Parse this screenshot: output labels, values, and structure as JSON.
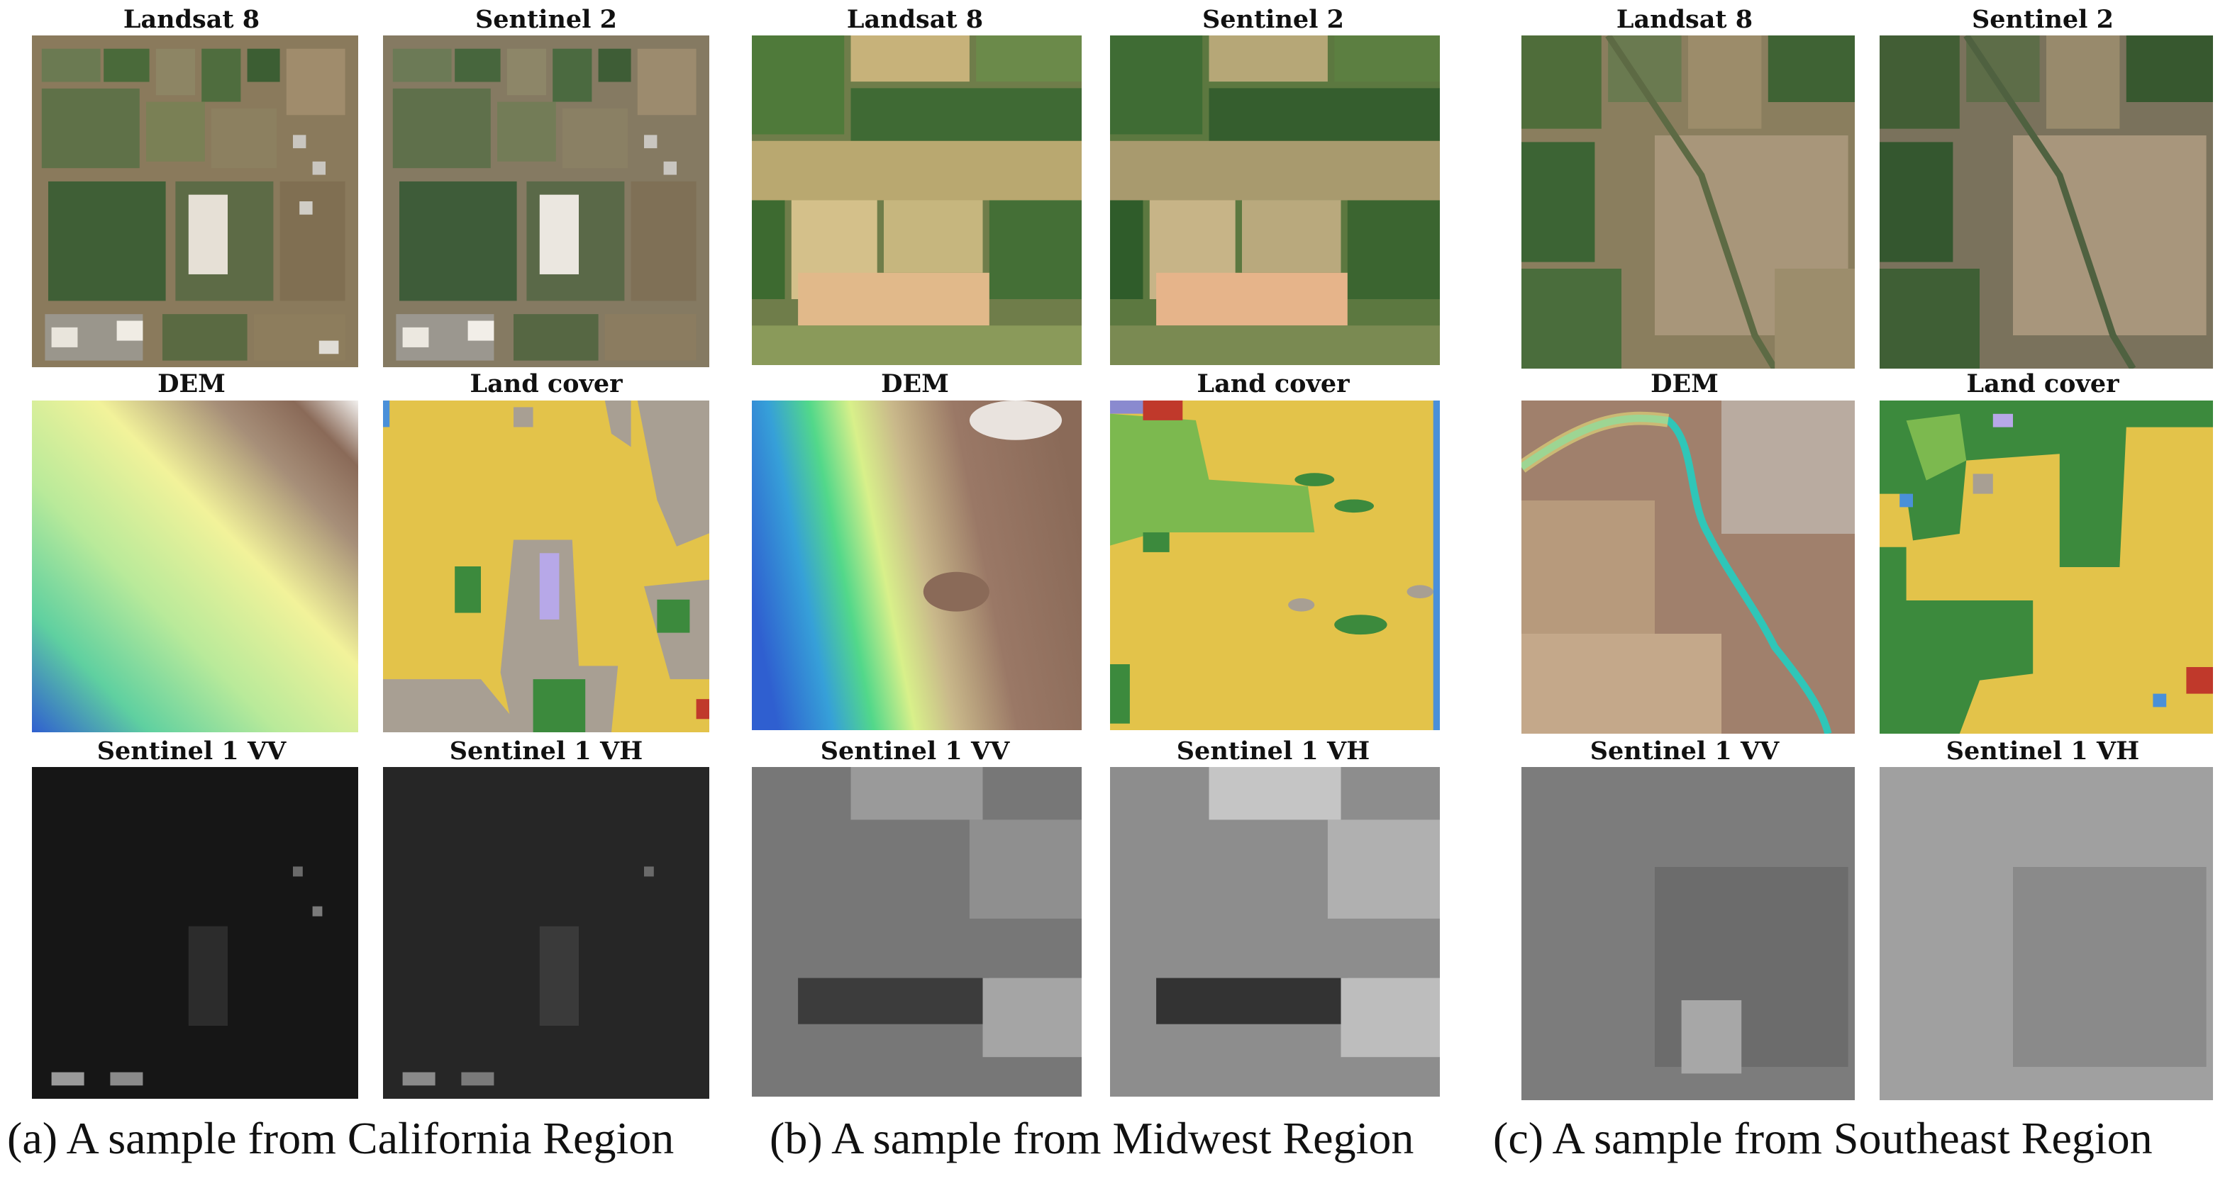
{
  "regions": [
    {
      "id": "california",
      "caption": "(a) A sample from California Region",
      "labels": {
        "landsat": "Landsat 8",
        "sentinel2": "Sentinel 2",
        "dem": "DEM",
        "landcover": "Land cover",
        "vv": "Sentinel 1 VV",
        "vh": "Sentinel 1 VH"
      }
    },
    {
      "id": "midwest",
      "caption": "(b) A sample from Midwest Region",
      "labels": {
        "landsat": "Landsat 8",
        "sentinel2": "Sentinel 2",
        "dem": "DEM",
        "landcover": "Land cover",
        "vv": "Sentinel 1 VV",
        "vh": "Sentinel 1 VH"
      }
    },
    {
      "id": "southeast",
      "caption": "(c) A sample from Southeast Region",
      "labels": {
        "landsat": "Landsat 8",
        "sentinel2": "Sentinel 2",
        "dem": "DEM",
        "landcover": "Land cover",
        "vv": "Sentinel 1 VV",
        "vh": "Sentinel 1 VH"
      }
    }
  ],
  "colors": {
    "landcover_crop": "#e3c34a",
    "landcover_developed": "#a89f93",
    "landcover_forest": "#3c8a3d",
    "landcover_grass": "#7cb94f",
    "landcover_water": "#4a90d9",
    "landcover_wetland": "#b7a8e8",
    "dem_low": "#2f6fd6",
    "dem_mid": "#f2f29a",
    "dem_high": "#8a6a58"
  }
}
